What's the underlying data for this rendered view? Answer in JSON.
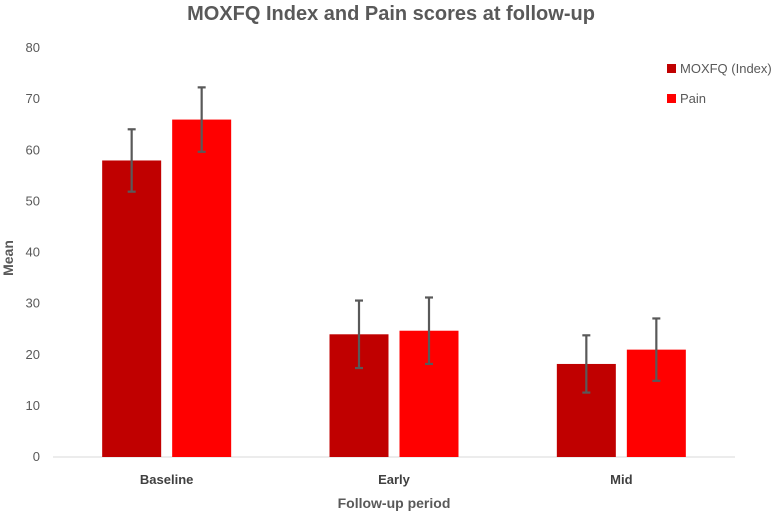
{
  "chart_data": {
    "type": "bar",
    "title": "MOXFQ Index and Pain scores at follow-up",
    "xlabel": "Follow-up period",
    "ylabel": "Mean",
    "ylim": [
      0,
      80
    ],
    "yticks": [
      0,
      10,
      20,
      30,
      40,
      50,
      60,
      70,
      80
    ],
    "categories": [
      "Baseline",
      "Early",
      "Mid"
    ],
    "series": [
      {
        "name": "MOXFQ (Index)",
        "color": "#C00000",
        "values": [
          58,
          24,
          18.2
        ],
        "errors": [
          6.1,
          6.6,
          5.6
        ]
      },
      {
        "name": "Pain",
        "color": "#FF0000",
        "values": [
          66,
          24.7,
          21
        ],
        "errors": [
          6.3,
          6.5,
          6.1
        ]
      }
    ],
    "legend_position": "top-right",
    "grid": false
  }
}
